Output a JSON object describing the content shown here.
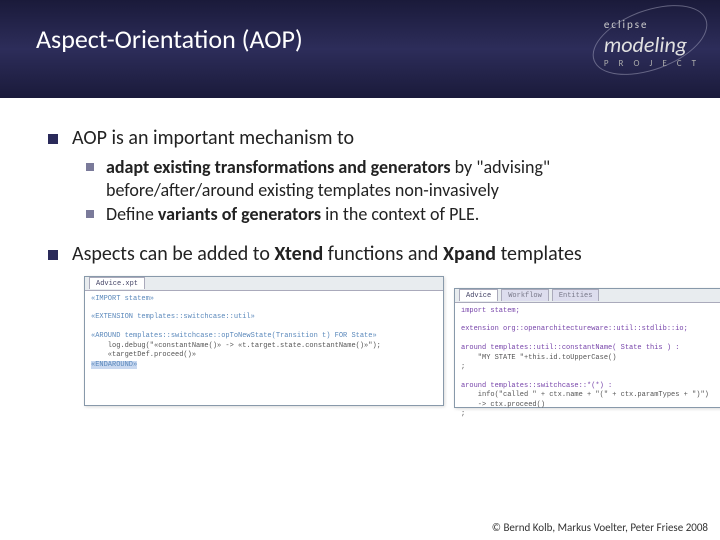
{
  "header": {
    "title": "Aspect-Orientation (AOP)",
    "logo_eclipse": "eclipse",
    "logo_modeling": "modeling",
    "logo_project": "P R O J E C T"
  },
  "bullets": {
    "b1": "AOP is an important mechanism to",
    "b1a_pre": "adapt existing transformations and generators",
    "b1a_post": " by \"advising\" before/after/around existing templates non-invasively",
    "b1b_pre": "Define ",
    "b1b_bold": "variants of generators",
    "b1b_post": " in the context of PLE.",
    "b2_pre": "Aspects can be added to ",
    "b2_x1": "Xtend",
    "b2_mid": " functions and ",
    "b2_x2": "Xpand",
    "b2_post": " templates"
  },
  "code1": {
    "tab": "Advice.xpt",
    "line1": "«IMPORT statem»",
    "line2": "",
    "line3": "«EXTENSION templates::switchcase::util»",
    "line4": "",
    "line5": "«AROUND templates::switchcase::opToNewState(Transition t) FOR State»",
    "line6": "    log.debug(\"«constantName()» -> «t.target.state.constantName()»\");",
    "line7": "    «targetDef.proceed()»",
    "line8": "«ENDAROUND»"
  },
  "code2": {
    "tab1": "Advice",
    "tab2": "Workflow",
    "tab3": "Entities",
    "line1": "import statem;",
    "line2": "",
    "line3": "extension org::openarchitectureware::util::stdlib::io;",
    "line4": "",
    "line5": "around templates::util::constantName( State this ) :",
    "line6": "    \"MY STATE \"+this.id.toUpperCase()",
    "line7": ";",
    "line8": "",
    "line9": "around templates::switchcase::*(*) :",
    "line10": "    info(\"called \" + ctx.name + \"(\" + ctx.paramTypes + \")\")",
    "line11": "    -> ctx.proceed()",
    "line12": ";"
  },
  "footer": "© Bernd Kolb, Markus Voelter, Peter Friese 2008"
}
